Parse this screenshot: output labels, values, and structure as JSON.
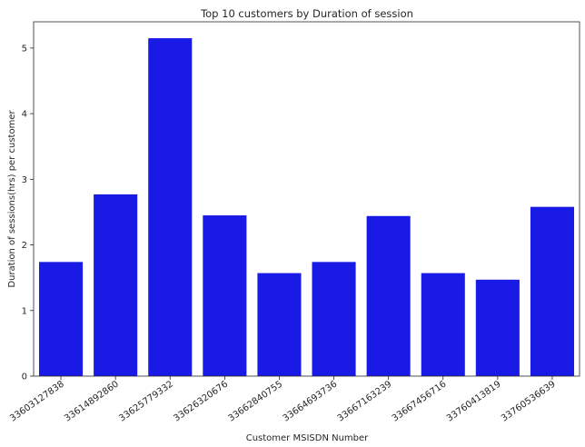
{
  "chart_data": {
    "type": "bar",
    "title": "Top 10 customers by Duration of session",
    "xlabel": "Customer MSISDN Number",
    "ylabel": "Duration of sessions(hrs) per customer",
    "categories": [
      "33603127838",
      "33614892860",
      "33625779332",
      "33626320676",
      "33662840755",
      "33664693736",
      "33667163239",
      "33667456716",
      "33760413819",
      "33760536639"
    ],
    "values": [
      1.74,
      2.77,
      5.15,
      2.45,
      1.57,
      1.74,
      2.44,
      1.57,
      1.47,
      2.58
    ],
    "ylim": [
      0,
      5.4
    ],
    "yticks": [
      0,
      1,
      2,
      3,
      4,
      5
    ],
    "bar_color": "#1a1ae6",
    "grid": false,
    "legend": "none"
  }
}
